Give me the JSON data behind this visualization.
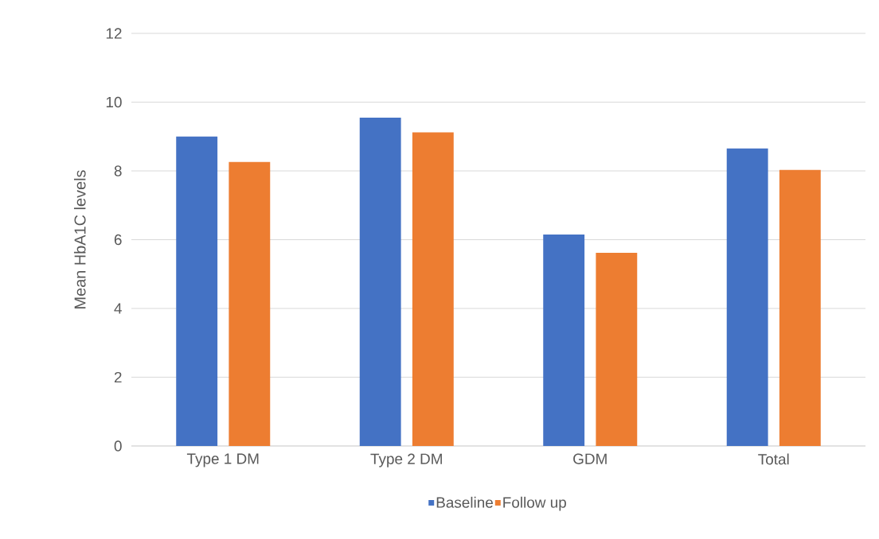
{
  "chart_data": {
    "type": "bar",
    "ylabel": "Mean HbA1C levels",
    "categories": [
      "Type 1 DM",
      "Type 2 DM",
      "GDM",
      "Total"
    ],
    "series": [
      {
        "name": "Baseline",
        "color": "#4472c4",
        "values": [
          9.0,
          9.55,
          6.15,
          8.65
        ]
      },
      {
        "name": "Follow up",
        "color": "#ed7d31",
        "values": [
          8.26,
          9.12,
          5.62,
          8.03
        ]
      }
    ],
    "ylim": [
      0,
      12
    ],
    "yticks": [
      0,
      2,
      4,
      6,
      8,
      10,
      12
    ],
    "grid": "y",
    "legend": "bottom"
  }
}
